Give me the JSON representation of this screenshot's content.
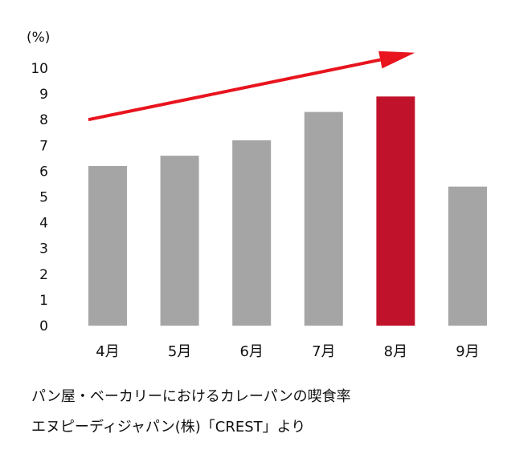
{
  "chart_data": {
    "type": "bar",
    "unit_label": "(%)",
    "categories": [
      "4月",
      "5月",
      "6月",
      "7月",
      "8月",
      "9月"
    ],
    "values": [
      6.2,
      6.6,
      7.2,
      8.3,
      8.9,
      5.4
    ],
    "ylim": [
      0,
      10
    ],
    "yticks": [
      0,
      1,
      2,
      3,
      4,
      5,
      6,
      7,
      8,
      9,
      10
    ],
    "grid": false,
    "highlight_category": "8月",
    "colors": {
      "bar": "#a5a5a5",
      "highlight": "#c0122a",
      "arrow": "#e8141e"
    },
    "annotation": {
      "type": "trend-arrow",
      "from": {
        "category": "4月",
        "y": 8.0
      },
      "to": {
        "category": "8月",
        "y": 10.6
      }
    }
  },
  "caption": {
    "line1": "パン屋・ベーカリーにおけるカレーパンの喫食率",
    "line2": "エヌピーディジャパン(株)「CREST」より"
  }
}
